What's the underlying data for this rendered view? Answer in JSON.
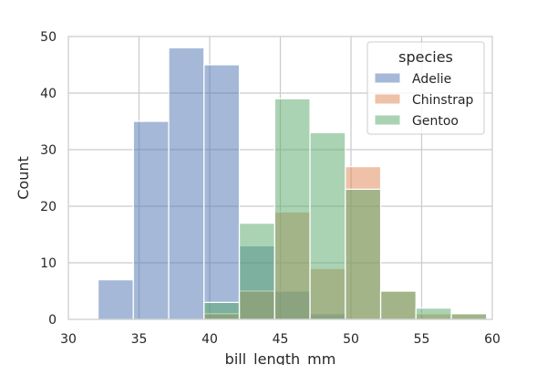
{
  "chart_data": {
    "type": "bar",
    "title": "",
    "xlabel": "bill_length_mm",
    "ylabel": "Count",
    "xlim": [
      30,
      60
    ],
    "ylim": [
      0,
      50
    ],
    "xticks": [
      30,
      35,
      40,
      45,
      50,
      55,
      60
    ],
    "yticks": [
      0,
      10,
      20,
      30,
      40,
      50
    ],
    "grid": true,
    "legend": {
      "title": "species",
      "placement": "top-right"
    },
    "bin_edges": [
      32.1,
      34.6,
      37.1,
      39.6,
      42.1,
      44.6,
      47.1,
      49.6,
      52.1,
      54.6,
      57.1,
      59.6
    ],
    "series": [
      {
        "name": "Adelie",
        "color": "#4c72b0",
        "values": [
          7,
          35,
          48,
          45,
          13,
          5,
          1,
          0,
          0,
          0,
          0
        ]
      },
      {
        "name": "Chinstrap",
        "color": "#dd8452",
        "values": [
          0,
          0,
          0,
          1,
          5,
          19,
          9,
          27,
          5,
          1,
          1
        ]
      },
      {
        "name": "Gentoo",
        "color": "#55a868",
        "values": [
          0,
          0,
          0,
          3,
          17,
          39,
          33,
          23,
          5,
          2,
          1
        ]
      }
    ]
  }
}
